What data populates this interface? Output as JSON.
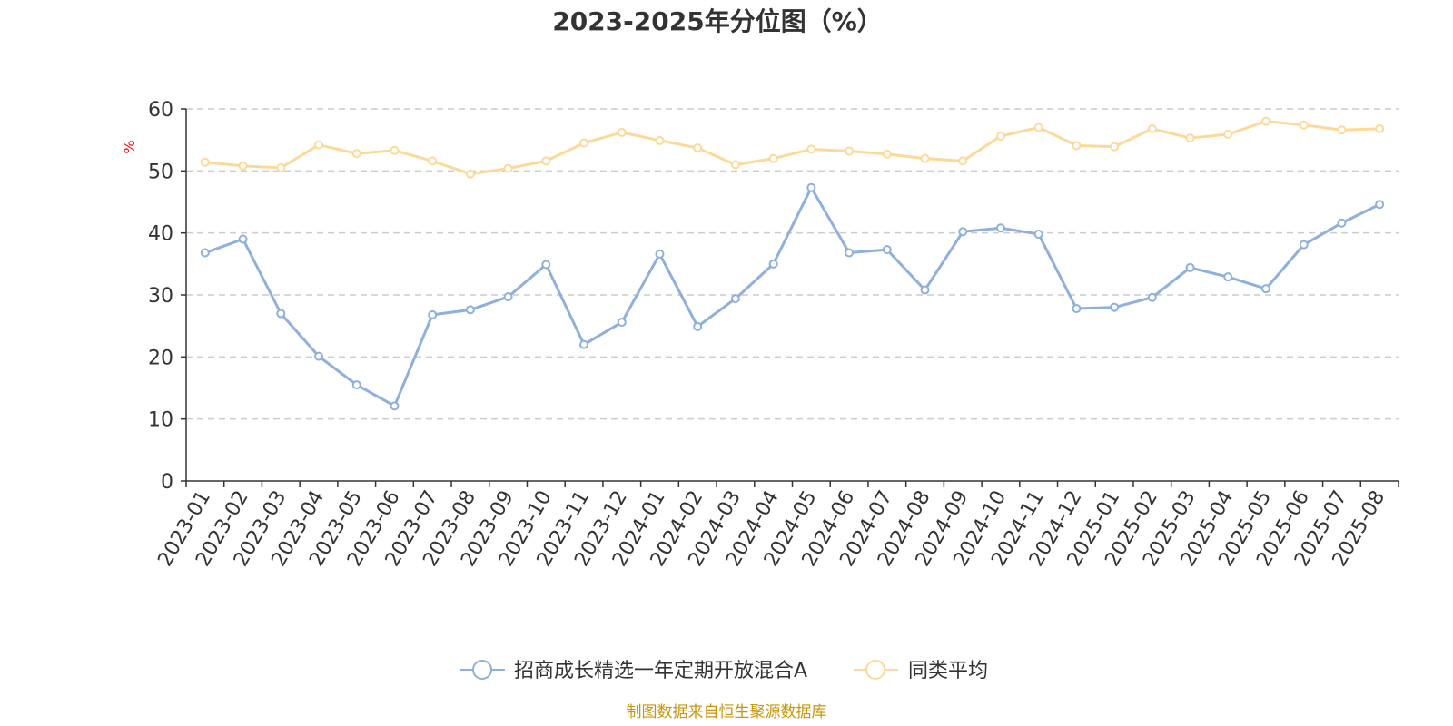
{
  "chart_data": {
    "type": "line",
    "title": "2023-2025年分位图（%）",
    "ylabel": "%",
    "ylim": [
      0,
      60
    ],
    "yticks": [
      0,
      10,
      20,
      30,
      40,
      50,
      60
    ],
    "grid": true,
    "legend_position": "bottom",
    "categories": [
      "2023-01",
      "2023-02",
      "2023-03",
      "2023-04",
      "2023-05",
      "2023-06",
      "2023-07",
      "2023-08",
      "2023-09",
      "2023-10",
      "2023-11",
      "2023-12",
      "2024-01",
      "2024-02",
      "2024-03",
      "2024-04",
      "2024-05",
      "2024-06",
      "2024-07",
      "2024-08",
      "2024-09",
      "2024-10",
      "2024-11",
      "2024-12",
      "2025-01",
      "2025-02",
      "2025-03",
      "2025-04",
      "2025-05",
      "2025-06",
      "2025-07",
      "2025-08"
    ],
    "series": [
      {
        "name": "招商成长精选一年定期开放混合A",
        "color": "#8eb0da",
        "values": [
          36.8,
          39.0,
          27.0,
          20.1,
          15.5,
          12.1,
          26.8,
          27.6,
          29.7,
          34.9,
          22.0,
          25.6,
          36.6,
          24.9,
          29.4,
          35.0,
          47.3,
          36.8,
          37.3,
          30.8,
          40.2,
          40.8,
          39.8,
          27.8,
          28.0,
          29.6,
          34.4,
          32.9,
          31.0,
          38.1,
          41.6,
          44.6
        ]
      },
      {
        "name": "同类平均",
        "color": "#fdd999",
        "values": [
          51.4,
          50.8,
          50.5,
          54.2,
          52.8,
          53.3,
          51.6,
          49.5,
          50.4,
          51.6,
          54.5,
          56.2,
          54.9,
          53.7,
          51.0,
          52.0,
          53.5,
          53.2,
          52.7,
          52.0,
          51.6,
          55.6,
          57.0,
          54.1,
          53.9,
          56.8,
          55.3,
          55.9,
          58.0,
          57.4,
          56.6,
          56.8
        ]
      }
    ]
  },
  "source": {
    "text": "制图数据来自恒生聚源数据库",
    "color": "#c8960c"
  },
  "colors": {
    "axis": "#333333",
    "grid": "#cccccc",
    "ylabel": "#ff0000"
  }
}
